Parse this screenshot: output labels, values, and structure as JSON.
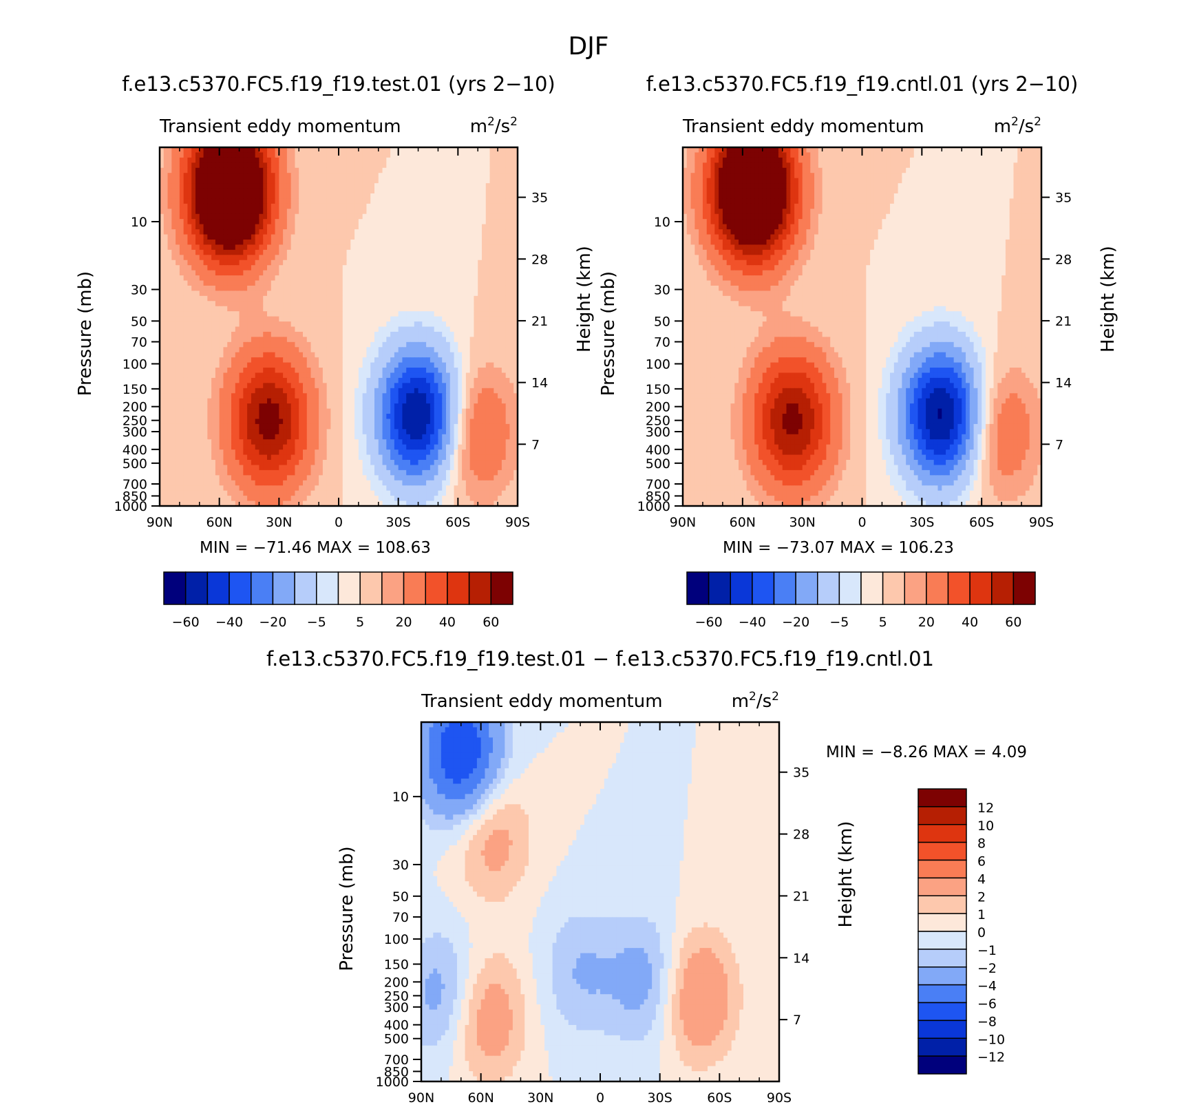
{
  "chart_data": {
    "type": "contour",
    "main_title": "DJF",
    "panels": [
      {
        "id": "test",
        "title": "f.e13.c5370.FC5.f19_f19.test.01 (yrs 2-10)",
        "variable": "Transient eddy momentum",
        "units_base": "m",
        "units_exp": "2",
        "units_sep": "/s",
        "xlabel": "",
        "ylabel": "Pressure (mb)",
        "ylabel_right": "Height (km)",
        "xticks": [
          "90N",
          "60N",
          "30N",
          "0",
          "30S",
          "60S",
          "90S"
        ],
        "yticks": [
          10,
          30,
          50,
          70,
          100,
          150,
          200,
          250,
          300,
          400,
          500,
          700,
          850,
          1000
        ],
        "height_ticks": [
          35,
          28,
          21,
          14,
          7
        ],
        "ylim": [
          1000,
          3
        ],
        "min_label": "MIN =",
        "min": "-71.46",
        "max_label": "MAX =",
        "max": "108.63",
        "levels": [
          -70,
          -60,
          -50,
          -40,
          -30,
          -20,
          -10,
          -5,
          0,
          5,
          10,
          20,
          30,
          40,
          50,
          60,
          70
        ],
        "colorbar_labels": [
          "-60",
          "-40",
          "-20",
          "-5",
          "5",
          "20",
          "40",
          "60"
        ],
        "features": [
          {
            "lat": 55,
            "p": 6,
            "value": 108.63
          },
          {
            "lat": 35,
            "p": 250,
            "value": 55
          },
          {
            "lat": -40,
            "p": 230,
            "value": -71.46
          },
          {
            "lat": -68,
            "p": 300,
            "value": 22
          }
        ]
      },
      {
        "id": "cntl",
        "title": "f.e13.c5370.FC5.f19_f19.cntl.01 (yrs 2-10)",
        "variable": "Transient eddy momentum",
        "units_base": "m",
        "units_exp": "2",
        "units_sep": "/s",
        "xlabel": "",
        "ylabel": "Pressure (mb)",
        "ylabel_right": "Height (km)",
        "xticks": [
          "90N",
          "60N",
          "30N",
          "0",
          "30S",
          "60S",
          "90S"
        ],
        "yticks": [
          10,
          30,
          50,
          70,
          100,
          150,
          200,
          250,
          300,
          400,
          500,
          700,
          850,
          1000
        ],
        "height_ticks": [
          35,
          28,
          21,
          14,
          7
        ],
        "ylim": [
          1000,
          3
        ],
        "min_label": "MIN =",
        "min": "-73.07",
        "max_label": "MAX =",
        "max": "106.23",
        "levels": [
          -70,
          -60,
          -50,
          -40,
          -30,
          -20,
          -10,
          -5,
          0,
          5,
          10,
          20,
          30,
          40,
          50,
          60,
          70
        ],
        "colorbar_labels": [
          "-60",
          "-40",
          "-20",
          "-5",
          "5",
          "20",
          "40",
          "60"
        ],
        "features": [
          {
            "lat": 55,
            "p": 6,
            "value": 106.23
          },
          {
            "lat": 35,
            "p": 250,
            "value": 53
          },
          {
            "lat": -40,
            "p": 230,
            "value": -73.07
          },
          {
            "lat": -68,
            "p": 300,
            "value": 20
          }
        ]
      },
      {
        "id": "diff",
        "title": "f.e13.c5370.FC5.f19_f19.test.01 - f.e13.c5370.FC5.f19_f19.cntl.01",
        "variable": "Transient eddy momentum",
        "units_base": "m",
        "units_exp": "2",
        "units_sep": "/s",
        "xlabel": "",
        "ylabel": "Pressure (mb)",
        "ylabel_right": "Height (km)",
        "xticks": [
          "90N",
          "60N",
          "30N",
          "0",
          "30S",
          "60S",
          "90S"
        ],
        "yticks": [
          10,
          30,
          50,
          70,
          100,
          150,
          200,
          250,
          300,
          400,
          500,
          700,
          850,
          1000
        ],
        "height_ticks": [
          35,
          28,
          21,
          14,
          7
        ],
        "ylim": [
          1000,
          3
        ],
        "min_label": "MIN =",
        "min": "-8.26",
        "max_label": "MAX =",
        "max": "4.09",
        "levels": [
          -12,
          -10,
          -8,
          -6,
          -4,
          -2,
          -1,
          0,
          1,
          2,
          4,
          6,
          8,
          10,
          12
        ],
        "colorbar_labels": [
          "12",
          "10",
          "8",
          "6",
          "4",
          "2",
          "1",
          "0",
          "-1",
          "-2",
          "-4",
          "-6",
          "-8",
          "-10",
          "-12"
        ],
        "features": [
          {
            "lat": 70,
            "p": 5,
            "value": -8.26
          },
          {
            "lat": 78,
            "p": 250,
            "value": -3
          },
          {
            "lat": 55,
            "p": 18,
            "value": 3
          },
          {
            "lat": 58,
            "p": 350,
            "value": 3.5
          },
          {
            "lat": -48,
            "p": 250,
            "value": 4.09
          },
          {
            "lat": -25,
            "p": 200,
            "value": -3
          },
          {
            "lat": 10,
            "p": 170,
            "value": -2
          }
        ]
      }
    ],
    "palette_main": [
      "#00007c",
      "#0020a8",
      "#0a37d8",
      "#1e55f2",
      "#4a7ff5",
      "#82a9f7",
      "#b6cdfa",
      "#d8e7fb",
      "#fde8da",
      "#fdc8ad",
      "#fba283",
      "#f97c55",
      "#f2522a",
      "#de3510",
      "#b61f03",
      "#7d0202"
    ],
    "palette_diff": [
      "#00007c",
      "#0020a8",
      "#0a37d8",
      "#1e55f2",
      "#4a7ff5",
      "#82a9f7",
      "#b6cdfa",
      "#d8e7fb",
      "#fde8da",
      "#fdc8ad",
      "#fba283",
      "#f97c55",
      "#f2522a",
      "#de3510",
      "#b61f03",
      "#7d0202"
    ]
  }
}
